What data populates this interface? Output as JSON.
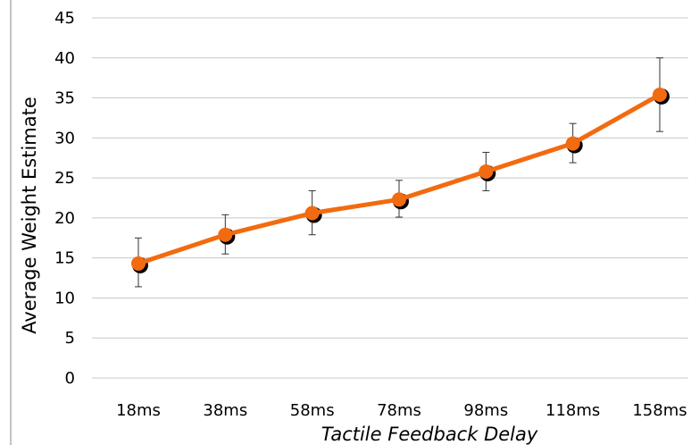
{
  "chart_data": {
    "type": "line",
    "xlabel": "Tactile Feedback Delay",
    "ylabel": "Average Weight Estimate",
    "ylim": [
      0,
      45
    ],
    "y_ticks": [
      "0",
      "5",
      "10",
      "15",
      "20",
      "25",
      "30",
      "35",
      "40",
      "45"
    ],
    "categories": [
      "18ms",
      "38ms",
      "58ms",
      "78ms",
      "98ms",
      "118ms",
      "158ms"
    ],
    "series": [
      {
        "values": [
          14.3,
          17.9,
          20.6,
          22.3,
          25.8,
          29.3,
          35.4
        ],
        "error_low": [
          11.4,
          15.5,
          17.9,
          20.1,
          23.4,
          26.9,
          30.8
        ],
        "error_high": [
          17.5,
          20.4,
          23.4,
          24.7,
          28.2,
          31.8,
          40.0
        ]
      }
    ],
    "grid": true,
    "colors": {
      "line": "#f26b10",
      "marker_shadow": "#000000",
      "grid": "#c8c8c8",
      "error_bar": "#333333"
    }
  }
}
